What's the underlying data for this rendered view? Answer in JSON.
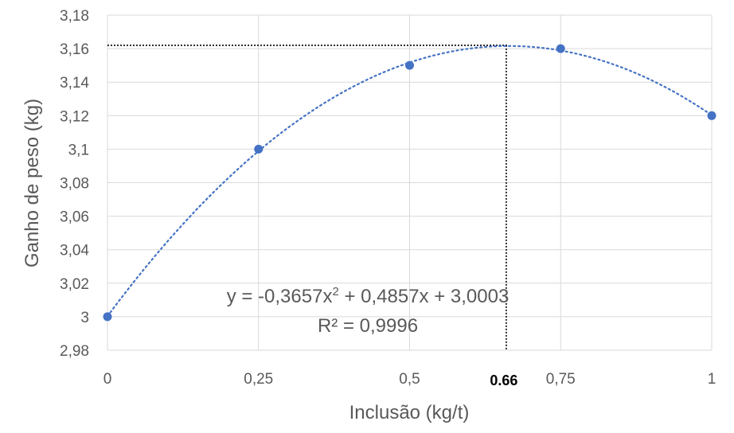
{
  "chart_data": {
    "type": "scatter",
    "title": "",
    "xlabel": "Inclusão (kg/t)",
    "ylabel": "Ganho de peso (kg)",
    "xlim": [
      0,
      1
    ],
    "ylim": [
      2.98,
      3.18
    ],
    "x_ticks": [
      {
        "value": 0,
        "label": "0"
      },
      {
        "value": 0.25,
        "label": "0,25"
      },
      {
        "value": 0.5,
        "label": "0,5"
      },
      {
        "value": 0.75,
        "label": "0,75"
      },
      {
        "value": 1,
        "label": "1"
      }
    ],
    "y_ticks": [
      {
        "value": 2.98,
        "label": "2,98"
      },
      {
        "value": 3.0,
        "label": "3"
      },
      {
        "value": 3.02,
        "label": "3,02"
      },
      {
        "value": 3.04,
        "label": "3,04"
      },
      {
        "value": 3.06,
        "label": "3,06"
      },
      {
        "value": 3.08,
        "label": "3,08"
      },
      {
        "value": 3.1,
        "label": "3,1"
      },
      {
        "value": 3.12,
        "label": "3,12"
      },
      {
        "value": 3.14,
        "label": "3,14"
      },
      {
        "value": 3.16,
        "label": "3,16"
      },
      {
        "value": 3.18,
        "label": "3,18"
      }
    ],
    "grid": true,
    "series": [
      {
        "name": "Ganho de peso",
        "x": [
          0,
          0.25,
          0.5,
          0.75,
          1
        ],
        "values": [
          3.0,
          3.1,
          3.15,
          3.16,
          3.12
        ],
        "color": "#4472C4"
      }
    ],
    "trendline": {
      "type": "polynomial",
      "order": 2,
      "coefficients": {
        "a": -0.3657,
        "b": 0.4857,
        "c": 3.0003
      },
      "color": "#4472C4",
      "equation_label_prefix": "y = -0,3657x",
      "equation_label_exponent": "2",
      "equation_label_suffix": " + 0,4857x + 3,0003",
      "r2_label": "R² = 0,9996"
    },
    "optimum": {
      "x": 0.66,
      "y": 3.162,
      "label": "0.66",
      "color": "#000000"
    }
  }
}
